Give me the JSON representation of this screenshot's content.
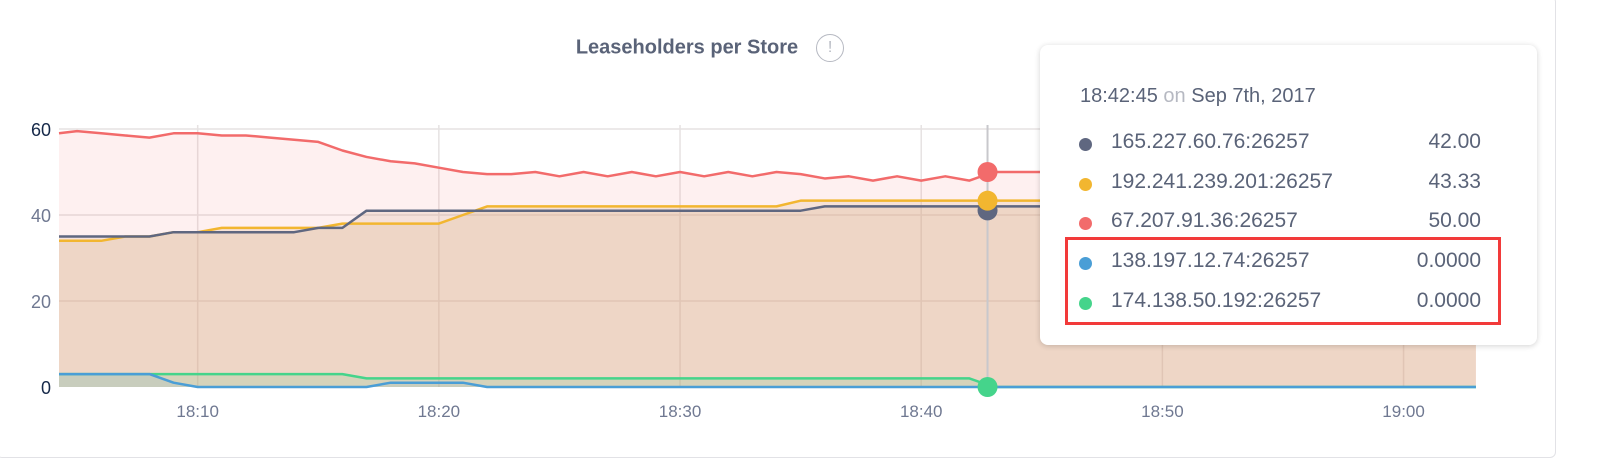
{
  "title": "Leaseholders per Store",
  "info_icon": "exclamation-circle-icon",
  "chart_data": {
    "type": "area",
    "title": "Leaseholders per Store",
    "xlabel": "",
    "ylabel": "",
    "xlim": [
      "18:04:15",
      "19:03:40"
    ],
    "ylim": [
      0,
      60
    ],
    "x_ticks": [
      "18:10",
      "18:20",
      "18:30",
      "18:40",
      "18:50",
      "19:00"
    ],
    "y_ticks": [
      "0",
      "20",
      "40",
      "60"
    ],
    "grid": true,
    "x": [
      "18:04",
      "18:05",
      "18:06",
      "18:07",
      "18:08",
      "18:09",
      "18:10",
      "18:11",
      "18:12",
      "18:13",
      "18:14",
      "18:15",
      "18:16",
      "18:17",
      "18:18",
      "18:19",
      "18:20",
      "18:21",
      "18:22",
      "18:23",
      "18:24",
      "18:25",
      "18:26",
      "18:27",
      "18:28",
      "18:29",
      "18:30",
      "18:31",
      "18:32",
      "18:33",
      "18:34",
      "18:35",
      "18:36",
      "18:37",
      "18:38",
      "18:39",
      "18:40",
      "18:41",
      "18:42",
      "18:43",
      "18:44",
      "18:45",
      "18:46",
      "18:47",
      "18:48",
      "18:49",
      "18:50",
      "18:51",
      "18:52",
      "18:53",
      "18:54",
      "18:55",
      "18:56",
      "18:57",
      "18:58",
      "18:59",
      "19:00",
      "19:01",
      "19:02",
      "19:03"
    ],
    "series": [
      {
        "name": "67.207.91.36:26257",
        "color": "#f26b6b",
        "values": [
          59,
          59.5,
          59,
          58.5,
          58,
          59,
          59,
          58.5,
          58.5,
          58,
          57.5,
          57,
          55,
          53.5,
          52.5,
          52,
          51,
          50,
          49.5,
          49.5,
          50,
          49,
          50,
          49,
          50,
          49,
          50,
          49,
          50,
          49,
          50,
          49.5,
          48.5,
          49,
          48,
          49,
          48,
          49,
          48,
          50,
          50,
          50,
          50,
          50,
          50,
          50,
          50,
          50,
          50,
          50,
          50,
          50,
          50,
          50,
          50,
          50,
          50,
          50,
          50,
          50
        ]
      },
      {
        "name": "192.241.239.201:26257",
        "color": "#f2b630",
        "values": [
          34,
          34,
          34,
          35,
          35,
          36,
          36,
          37,
          37,
          37,
          37,
          37,
          38,
          38,
          38,
          38,
          38,
          40,
          42,
          42,
          42,
          42,
          42,
          42,
          42,
          42,
          42,
          42,
          42,
          42,
          42,
          43.33,
          43.33,
          43.33,
          43.33,
          43.33,
          43.33,
          43.33,
          43.33,
          43.33,
          43.33,
          43.33,
          43.33,
          43.33,
          43.33,
          43.33,
          43.33,
          43.33,
          43.33,
          43.33,
          43.33,
          43.33,
          43.33,
          43.33,
          43.33,
          43.33,
          43.33,
          43.33,
          43.33,
          43.33
        ]
      },
      {
        "name": "165.227.60.76:26257",
        "color": "#5f6780",
        "values": [
          35,
          35,
          35,
          35,
          35,
          36,
          36,
          36,
          36,
          36,
          36,
          37,
          37,
          41,
          41,
          41,
          41,
          41,
          41,
          41,
          41,
          41,
          41,
          41,
          41,
          41,
          41,
          41,
          41,
          41,
          41,
          41,
          42,
          42,
          42,
          42,
          42,
          42,
          42,
          42,
          42,
          42,
          42,
          42,
          42,
          42,
          42,
          42,
          42,
          42,
          42,
          42,
          42,
          42,
          42,
          42,
          42,
          42,
          42,
          42
        ]
      },
      {
        "name": "174.138.50.192:26257",
        "color": "#45d48b",
        "values": [
          3,
          3,
          3,
          3,
          3,
          3,
          3,
          3,
          3,
          3,
          3,
          3,
          3,
          2,
          2,
          2,
          2,
          2,
          2,
          2,
          2,
          2,
          2,
          2,
          2,
          2,
          2,
          2,
          2,
          2,
          2,
          2,
          2,
          2,
          2,
          2,
          2,
          2,
          2,
          0,
          0,
          0,
          0,
          0,
          0,
          0,
          0,
          0,
          0,
          0,
          0,
          0,
          0,
          0,
          0,
          0,
          0,
          0,
          0,
          0
        ]
      },
      {
        "name": "138.197.12.74:26257",
        "color": "#4a9ed6",
        "values": [
          3,
          3,
          3,
          3,
          3,
          1,
          0,
          0,
          0,
          0,
          0,
          0,
          0,
          0,
          1,
          1,
          1,
          1,
          0,
          0,
          0,
          0,
          0,
          0,
          0,
          0,
          0,
          0,
          0,
          0,
          0,
          0,
          0,
          0,
          0,
          0,
          0,
          0,
          0,
          0,
          0,
          0,
          0,
          0,
          0,
          0,
          0,
          0,
          0,
          0,
          0,
          0,
          0,
          0,
          0,
          0,
          0,
          0,
          0,
          0
        ]
      }
    ],
    "hover_time": "18:42:45"
  },
  "tooltip": {
    "time": "18:42:45",
    "on": "on",
    "date": "Sep 7th, 2017",
    "rows": [
      {
        "label": "165.227.60.76:26257",
        "value": "42.00",
        "color": "#5f6780"
      },
      {
        "label": "192.241.239.201:26257",
        "value": "43.33",
        "color": "#f2b630"
      },
      {
        "label": "67.207.91.36:26257",
        "value": "50.00",
        "color": "#f26b6b"
      },
      {
        "label": "138.197.12.74:26257",
        "value": "0.0000",
        "color": "#4a9ed6"
      },
      {
        "label": "174.138.50.192:26257",
        "value": "0.0000",
        "color": "#45d48b"
      }
    ],
    "highlight_color": "#f23a3a"
  }
}
